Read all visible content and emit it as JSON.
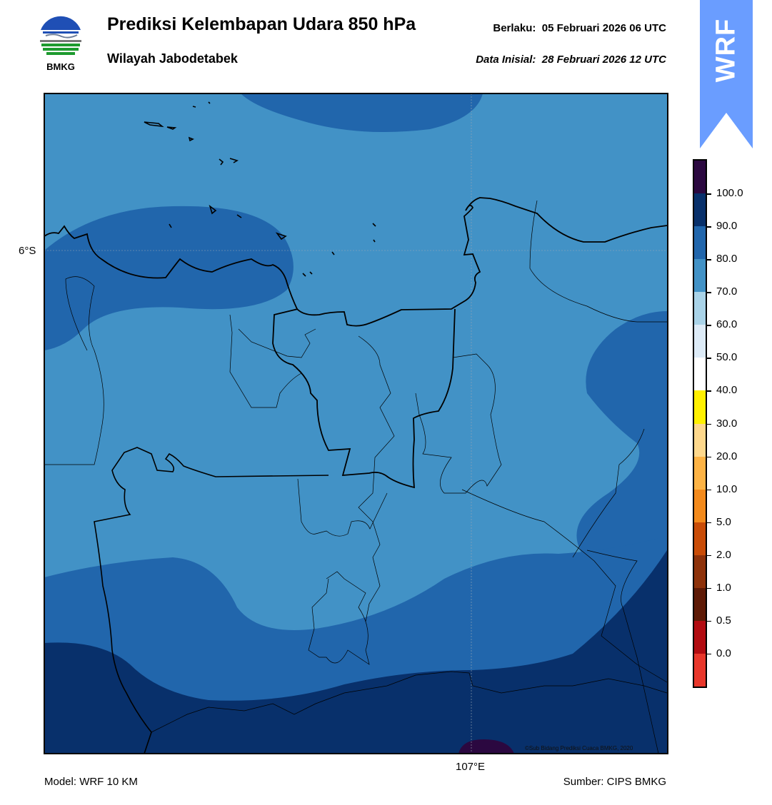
{
  "header": {
    "title": "Prediksi Kelembapan Udara 850 hPa",
    "subtitle": "Wilayah Jabodetabek",
    "valid_label": "Berlaku:",
    "valid_time": "05 Februari 2026 06 UTC",
    "init_label": "Data Inisial:",
    "init_time": "28 Februari 2026 12 UTC"
  },
  "logo": {
    "text": "BMKG",
    "icon": "bmkg-logo"
  },
  "badge": {
    "text": "WRF",
    "color": "#6a9dff"
  },
  "map": {
    "lat_label": "6°S",
    "lon_label": "107°E",
    "copyright": "©Sub Bidang Prediksi Cuaca BMKG, 2020"
  },
  "colorbar": {
    "bands": [
      {
        "color": "#e8372b"
      },
      {
        "color": "#b20c11"
      },
      {
        "color": "#5e1a06"
      },
      {
        "color": "#8e320a"
      },
      {
        "color": "#c94c07"
      },
      {
        "color": "#f38a1c"
      },
      {
        "color": "#fdb345"
      },
      {
        "color": "#fed88c"
      },
      {
        "color": "#fff000"
      },
      {
        "color": "#ffffff"
      },
      {
        "color": "#ddebf7"
      },
      {
        "color": "#a9d3e8"
      },
      {
        "color": "#4292c6"
      },
      {
        "color": "#2166ac"
      },
      {
        "color": "#08306b"
      },
      {
        "color": "#2b0840"
      }
    ],
    "labels": [
      "0.0",
      "0.5",
      "1.0",
      "2.0",
      "5.0",
      "10.0",
      "20.0",
      "30.0",
      "40.0",
      "50.0",
      "60.0",
      "70.0",
      "80.0",
      "90.0",
      "100.0"
    ]
  },
  "footer": {
    "model": "Model: WRF 10 KM",
    "source": "Sumber: CIPS BMKG"
  },
  "colors": {
    "rh_70_80": "#4292c6",
    "rh_80_90": "#2166ac",
    "rh_90_100": "#08306b",
    "rh_100": "#2b0840"
  }
}
